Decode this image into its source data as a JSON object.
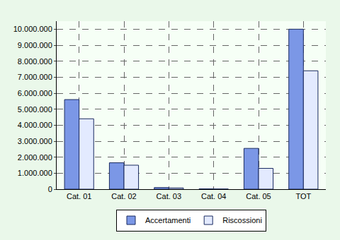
{
  "chart_data": {
    "type": "bar",
    "categories": [
      "Cat. 01",
      "Cat. 02",
      "Cat. 03",
      "Cat. 04",
      "Cat. 05",
      "TOT"
    ],
    "series": [
      {
        "name": "Accertamenti",
        "color": "#7b97e6",
        "values": [
          5600000,
          1650000,
          100000,
          20000,
          2550000,
          10000000
        ]
      },
      {
        "name": "Riscossioni",
        "color": "#e3eaff",
        "values": [
          4400000,
          1500000,
          80000,
          10000,
          1300000,
          7400000
        ]
      }
    ],
    "ylim": [
      0,
      10500000
    ],
    "yticks": [
      0,
      {
        "value": 1000000,
        "label": "1.000.000"
      },
      {
        "value": 2000000,
        "label": "2.000.000"
      },
      {
        "value": 3000000,
        "label": "3.000.000"
      },
      {
        "value": 4000000,
        "label": "4.000.000"
      },
      {
        "value": 5000000,
        "label": "5.000.000"
      },
      {
        "value": 6000000,
        "label": "6.000.000"
      },
      {
        "value": 7000000,
        "label": "7.000.000"
      },
      {
        "value": 8000000,
        "label": "8.000.000"
      },
      {
        "value": 9000000,
        "label": "9.000.000"
      },
      {
        "value": 10000000,
        "label": "10.000.000"
      }
    ],
    "grid": true,
    "legend": "bottom"
  }
}
